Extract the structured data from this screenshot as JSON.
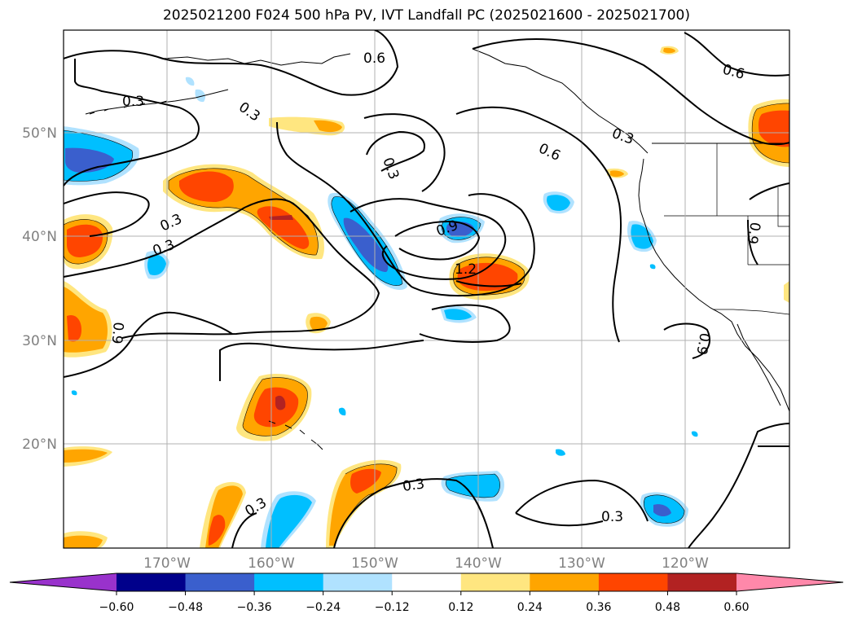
{
  "title": "2025021200 F024 500 hPa PV, IVT Landfall PC (2025021600 - 2025021700)",
  "map": {
    "lat_labels": [
      "50°N",
      "40°N",
      "30°N",
      "20°N"
    ],
    "lon_labels": [
      "170°W",
      "160°W",
      "150°W",
      "140°W",
      "130°W",
      "120°W"
    ],
    "contour_labels": [
      "0.3",
      "0.6",
      "0.9",
      "1.2"
    ]
  },
  "colorbar": {
    "ticks": [
      "−0.60",
      "−0.48",
      "−0.36",
      "−0.24",
      "−0.12",
      "0.12",
      "0.24",
      "0.36",
      "0.48",
      "0.60"
    ],
    "colors": [
      "#9932cc",
      "#00008b",
      "#3a5fcd",
      "#00bfff",
      "#b0e2ff",
      "#ffffff",
      "#ffe680",
      "#ffa500",
      "#ff4500",
      "#b22222",
      "#ff88aa"
    ]
  },
  "palette": {
    "light_yellow": "#ffe680",
    "orange": "#ffa500",
    "red_orange": "#ff4500",
    "dark_red": "#b22222",
    "light_blue": "#b0e2ff",
    "sky_blue": "#00bfff",
    "royal_blue": "#3a5fcd"
  }
}
